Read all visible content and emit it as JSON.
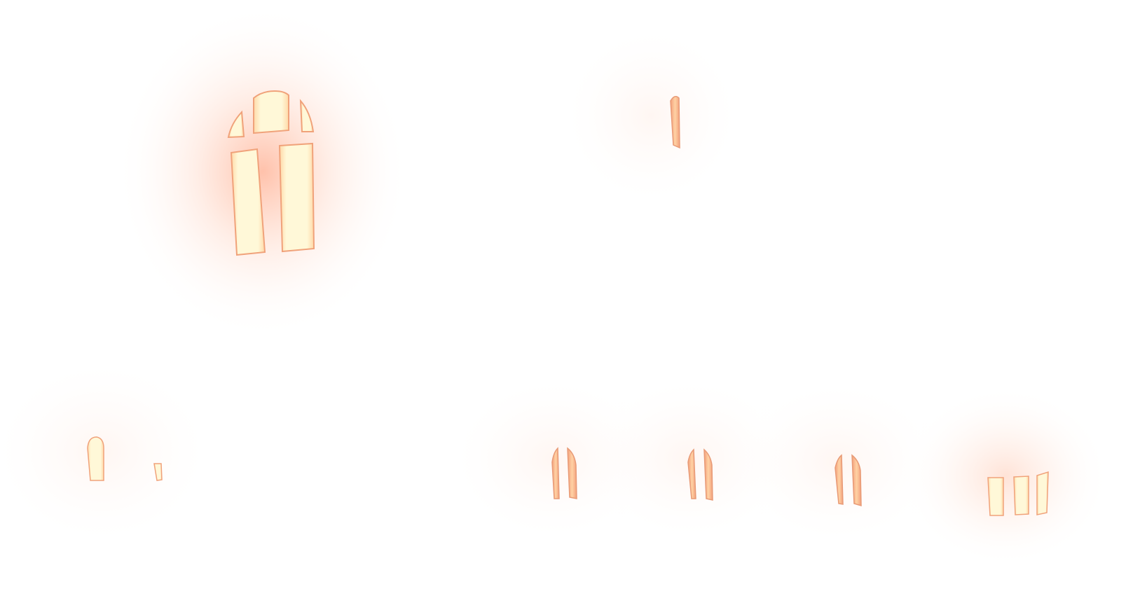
{
  "palette": {
    "background": "#ffffff",
    "pane_fill": "#fff7d6",
    "pane_edge": "#f0a27a",
    "glow": "#ff9a6a"
  },
  "windows": [
    {
      "name": "large-arched-window",
      "panes": 5,
      "glow": "strong"
    },
    {
      "name": "narrow-slit-window",
      "panes": 1,
      "glow": "faint"
    },
    {
      "name": "small-window-pair",
      "panes": 2,
      "glow": "faint"
    },
    {
      "name": "double-slit-window-a",
      "panes": 2,
      "glow": "faint"
    },
    {
      "name": "double-slit-window-b",
      "panes": 2,
      "glow": "faint"
    },
    {
      "name": "double-slit-window-c",
      "panes": 2,
      "glow": "faint"
    },
    {
      "name": "triple-pane-window",
      "panes": 3,
      "glow": "medium"
    }
  ]
}
